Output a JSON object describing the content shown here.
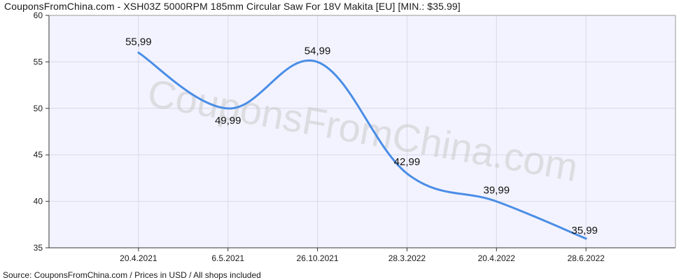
{
  "header": {
    "title": "CouponsFromChina.com - XSH03Z 5000RPM 185mm Circular Saw For 18V Makita [EU] [MIN.: $35.99]"
  },
  "footer": {
    "source": "Source:  CouponsFromChina.com / Prices in USD / All shops included"
  },
  "watermark": "CouponsFromChina.com",
  "chart_data": {
    "type": "line",
    "categories": [
      "20.4.2021",
      "6.5.2021",
      "26.10.2021",
      "28.3.2022",
      "20.4.2022",
      "28.6.2022"
    ],
    "values": [
      55.99,
      49.99,
      54.99,
      42.99,
      39.99,
      35.99
    ],
    "data_labels": [
      "55,99",
      "49,99",
      "54,99",
      "42,99",
      "39,99",
      "35,99"
    ],
    "ylim": [
      35,
      60
    ],
    "yticks": [
      35,
      40,
      45,
      50,
      55,
      60
    ],
    "grid": true,
    "line_color": "#4a8ee6",
    "grid_color": "#d8d8e8",
    "plot_background": "#f3f3ff"
  }
}
